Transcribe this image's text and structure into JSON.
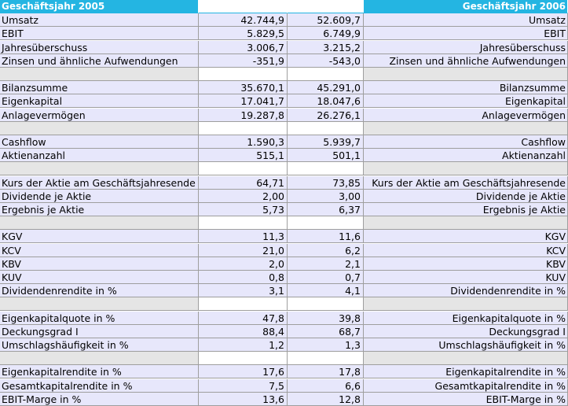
{
  "headers": {
    "left_title": "Geschäftsjahr 2005",
    "right_title": "Geschäftsjahr 2006"
  },
  "rows": [
    {
      "type": "header"
    },
    {
      "type": "data",
      "label": "Umsatz",
      "v2005": "42.744,9",
      "v2006": "52.609,7"
    },
    {
      "type": "data",
      "label": "EBIT",
      "v2005": "5.829,5",
      "v2006": "6.749,9"
    },
    {
      "type": "data",
      "label": "Jahresüberschuss",
      "v2005": "3.006,7",
      "v2006": "3.215,2"
    },
    {
      "type": "data",
      "label": "Zinsen und ähnliche Aufwendungen",
      "v2005": "-351,9",
      "v2006": "-543,0"
    },
    {
      "type": "spacer"
    },
    {
      "type": "data",
      "label": "Bilanzsumme",
      "v2005": "35.670,1",
      "v2006": "45.291,0"
    },
    {
      "type": "data",
      "label": "Eigenkapital",
      "v2005": "17.041,7",
      "v2006": "18.047,6"
    },
    {
      "type": "data",
      "label": "Anlagevermögen",
      "v2005": "19.287,8",
      "v2006": "26.276,1"
    },
    {
      "type": "spacer"
    },
    {
      "type": "data",
      "label": "Cashflow",
      "v2005": "1.590,3",
      "v2006": "5.939,7"
    },
    {
      "type": "data",
      "label": "Aktienanzahl",
      "v2005": "515,1",
      "v2006": "501,1"
    },
    {
      "type": "spacer"
    },
    {
      "type": "data",
      "label": "Kurs der Aktie am Geschäftsjahresende",
      "v2005": "64,71",
      "v2006": "73,85"
    },
    {
      "type": "data",
      "label": "Dividende je Aktie",
      "v2005": "2,00",
      "v2006": "3,00"
    },
    {
      "type": "data",
      "label": "Ergebnis je Aktie",
      "v2005": "5,73",
      "v2006": "6,37"
    },
    {
      "type": "spacer"
    },
    {
      "type": "data",
      "label": "KGV",
      "v2005": "11,3",
      "v2006": "11,6"
    },
    {
      "type": "data",
      "label": "KCV",
      "v2005": "21,0",
      "v2006": "6,2"
    },
    {
      "type": "data",
      "label": "KBV",
      "v2005": "2,0",
      "v2006": "2,1"
    },
    {
      "type": "data",
      "label": "KUV",
      "v2005": "0,8",
      "v2006": "0,7"
    },
    {
      "type": "data",
      "label": "Dividendenrendite in %",
      "v2005": "3,1",
      "v2006": "4,1"
    },
    {
      "type": "spacer"
    },
    {
      "type": "data",
      "label": "Eigenkapitalquote in %",
      "v2005": "47,8",
      "v2006": "39,8"
    },
    {
      "type": "data",
      "label": "Deckungsgrad I",
      "v2005": "88,4",
      "v2006": "68,7"
    },
    {
      "type": "data",
      "label": "Umschlagshäufigkeit in %",
      "v2005": "1,2",
      "v2006": "1,3"
    },
    {
      "type": "spacer"
    },
    {
      "type": "data",
      "label": "Eigenkapitalrendite in %",
      "v2005": "17,6",
      "v2006": "17,8"
    },
    {
      "type": "data",
      "label": "Gesamtkapitalrendite in %",
      "v2005": "7,5",
      "v2006": "6,6"
    },
    {
      "type": "data",
      "label": "EBIT-Marge in %",
      "v2005": "13,6",
      "v2006": "12,8"
    }
  ]
}
